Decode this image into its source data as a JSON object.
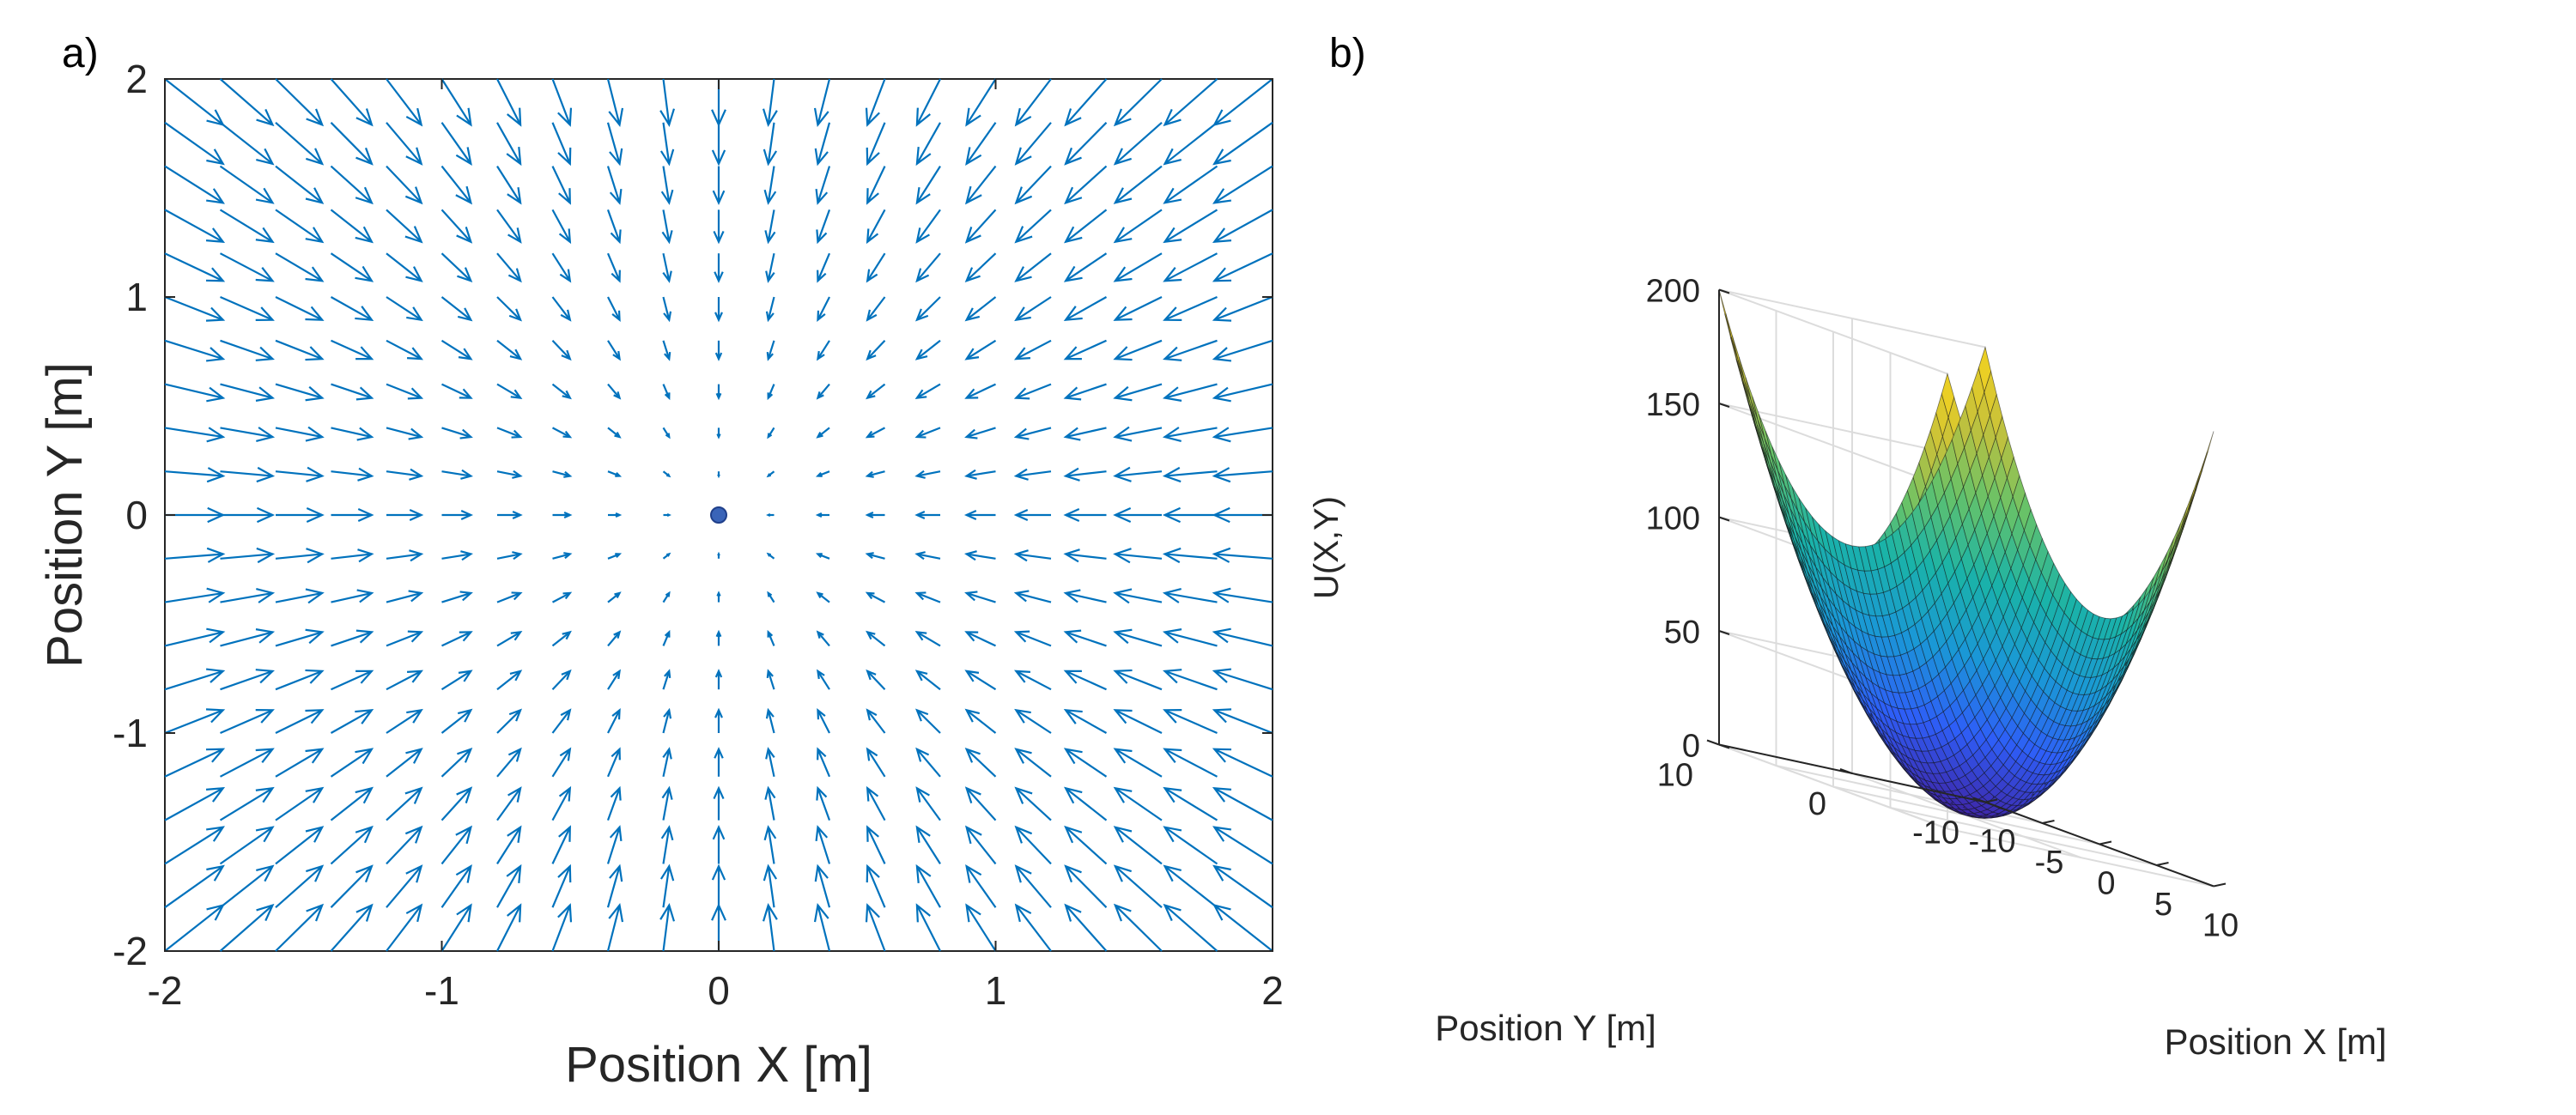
{
  "chart_data": [
    {
      "panel_label": "a)",
      "type": "quiver",
      "description_of_field": "gradient field pointing toward origin, F = -(x, y)",
      "x_range": [
        -2,
        2
      ],
      "y_range": [
        -2,
        2
      ],
      "grid_step": 0.2,
      "field_scale": -1,
      "center_point": {
        "x": 0,
        "y": 0
      },
      "xlabel": "Position X [m]",
      "ylabel": "Position Y [m]",
      "xticks": [
        "-2",
        "-1",
        "0",
        "1",
        "2"
      ],
      "yticks": [
        "2",
        "1",
        "0",
        "-1",
        "-2"
      ],
      "xtick_values": [
        -2,
        -1,
        0,
        1,
        2
      ],
      "ytick_values": [
        2,
        1,
        0,
        -1,
        -2
      ],
      "color": "#0072BD",
      "grid": false
    },
    {
      "panel_label": "b)",
      "type": "surface",
      "function": "U(X,Y) = X^2 + Y^2",
      "x_range": [
        -10,
        10
      ],
      "y_range": [
        -10,
        10
      ],
      "z_range": [
        0,
        200
      ],
      "zlabel": "U(X,Y)",
      "xlabel": "Position X [m]",
      "ylabel": "Position Y [m]",
      "zticks": [
        "0",
        "50",
        "100",
        "150",
        "200"
      ],
      "ztick_values": [
        0,
        50,
        100,
        150,
        200
      ],
      "xticks": [
        "-10",
        "-5",
        "0",
        "5",
        "10"
      ],
      "xtick_values": [
        -10,
        -5,
        0,
        5,
        10
      ],
      "yticks": [
        "-10",
        "0",
        "10"
      ],
      "ytick_values": [
        -10,
        0,
        10
      ],
      "colormap": "parula",
      "colormap_stops": [
        "#3e26a8",
        "#2e5ef7",
        "#1a98d6",
        "#1ab3a8",
        "#66c269",
        "#c7c13a",
        "#f9d51c"
      ],
      "grid": true
    }
  ]
}
